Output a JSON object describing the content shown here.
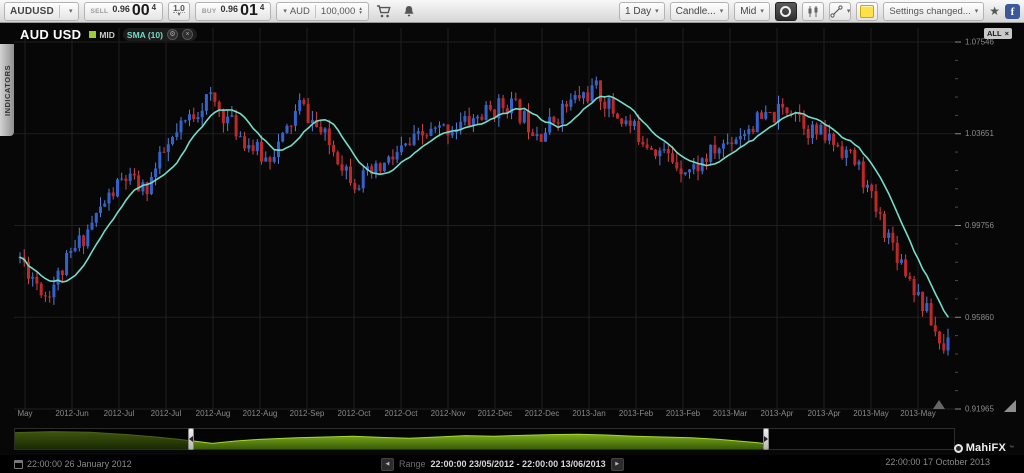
{
  "toolbar": {
    "symbol": "AUDUSD",
    "sell_label": "SELL",
    "sell_price_small": "0.96",
    "sell_price_big": "00",
    "sell_price_sup": "4",
    "spread": "1.0",
    "buy_label": "BUY",
    "buy_price_small": "0.96",
    "buy_price_big": "01",
    "buy_price_sup": "4",
    "currency": "AUD",
    "amount": "100,000",
    "period": "1 Day",
    "chart_style": "Candle...",
    "price_mode": "Mid",
    "notification": "Settings changed..."
  },
  "sidebar": {
    "indicators_tab": "INDICATORS"
  },
  "chart_header": {
    "title": "AUD USD",
    "mid_label": "MID",
    "sma_label": "SMA (10)",
    "all_badge": "ALL",
    "close_glyph": "×",
    "gear_glyph": "⚙"
  },
  "footer": {
    "start_time": "22:00:00 26 January 2012",
    "range_label": "Range",
    "range_value": "22:00:00 23/05/2012 - 22:00:00 13/06/2013",
    "end_time": "22:00:00 17 October 2013",
    "brand": "MahiFX"
  },
  "chart_data": {
    "type": "candlestick",
    "title": "AUD USD",
    "series": [
      {
        "name": "MID",
        "type": "candle"
      },
      {
        "name": "SMA (10)",
        "type": "line",
        "period": 10
      }
    ],
    "x_labels": [
      "May",
      "2012-Jun",
      "2012-Jul",
      "2012-Jul",
      "2012-Aug",
      "2012-Aug",
      "2012-Sep",
      "2012-Oct",
      "2012-Oct",
      "2012-Nov",
      "2012-Dec",
      "2012-Dec",
      "2013-Jan",
      "2013-Feb",
      "2013-Feb",
      "2013-Mar",
      "2013-Apr",
      "2013-Apr",
      "2013-May",
      "2013-May"
    ],
    "y_tick_labels": [
      "1.07546",
      "1.03651",
      "0.99756",
      "0.95860",
      "0.91965"
    ],
    "y_ticks": [
      1.07546,
      1.03651,
      0.99756,
      0.9586,
      0.91965
    ],
    "y_min": 0.91965,
    "y_max": 1.07546,
    "grid": true,
    "price_path": [
      [
        0.0,
        0.984
      ],
      [
        0.028,
        0.968
      ],
      [
        0.046,
        0.979
      ],
      [
        0.07,
        0.994
      ],
      [
        0.091,
        1.007
      ],
      [
        0.113,
        1.018
      ],
      [
        0.134,
        1.012
      ],
      [
        0.155,
        1.028
      ],
      [
        0.182,
        1.043
      ],
      [
        0.203,
        1.052
      ],
      [
        0.219,
        1.045
      ],
      [
        0.24,
        1.035
      ],
      [
        0.264,
        1.0255
      ],
      [
        0.283,
        1.034
      ],
      [
        0.302,
        1.049
      ],
      [
        0.32,
        1.039
      ],
      [
        0.341,
        1.028
      ],
      [
        0.362,
        1.016
      ],
      [
        0.384,
        1.02
      ],
      [
        0.41,
        1.029
      ],
      [
        0.437,
        1.036
      ],
      [
        0.463,
        1.039
      ],
      [
        0.485,
        1.042
      ],
      [
        0.506,
        1.046
      ],
      [
        0.527,
        1.05
      ],
      [
        0.548,
        1.041
      ],
      [
        0.564,
        1.037
      ],
      [
        0.582,
        1.046
      ],
      [
        0.601,
        1.052
      ],
      [
        0.621,
        1.055
      ],
      [
        0.639,
        1.046
      ],
      [
        0.665,
        1.037
      ],
      [
        0.687,
        1.03
      ],
      [
        0.708,
        1.024
      ],
      [
        0.724,
        1.021
      ],
      [
        0.745,
        1.028
      ],
      [
        0.769,
        1.035
      ],
      [
        0.791,
        1.041
      ],
      [
        0.812,
        1.044
      ],
      [
        0.833,
        1.049
      ],
      [
        0.851,
        1.038
      ],
      [
        0.869,
        1.035
      ],
      [
        0.888,
        1.03
      ],
      [
        0.904,
        1.022
      ],
      [
        0.92,
        1.006
      ],
      [
        0.936,
        0.993
      ],
      [
        0.952,
        0.981
      ],
      [
        0.968,
        0.968
      ],
      [
        0.984,
        0.955
      ],
      [
        0.995,
        0.944
      ],
      [
        1.0,
        0.953
      ]
    ],
    "candles_count": 220,
    "body_volatility": 0.0045,
    "wick_extent": 0.004,
    "seed": 11,
    "sma_period": 10,
    "colors": {
      "up": "#3263cd",
      "up_wick": "#5580d8",
      "down": "#c02828",
      "down_wick": "#d24545",
      "sma": "#74dcc8",
      "grid": "#1f1f1f",
      "axis_text": "#8a8a8a",
      "mid_swatch": "#9acd32",
      "nav_fill_top": "#8abd20",
      "nav_fill_bottom": "#395c07",
      "nav_line": "#a6d437"
    },
    "navigator": {
      "path": [
        [
          0.0,
          0.18
        ],
        [
          0.04,
          0.13
        ],
        [
          0.08,
          0.16
        ],
        [
          0.12,
          0.28
        ],
        [
          0.15,
          0.4
        ],
        [
          0.175,
          0.52
        ],
        [
          0.19,
          0.6
        ],
        [
          0.21,
          0.72
        ],
        [
          0.235,
          0.6
        ],
        [
          0.26,
          0.52
        ],
        [
          0.3,
          0.44
        ],
        [
          0.33,
          0.4
        ],
        [
          0.36,
          0.36
        ],
        [
          0.39,
          0.42
        ],
        [
          0.42,
          0.46
        ],
        [
          0.45,
          0.4
        ],
        [
          0.48,
          0.33
        ],
        [
          0.51,
          0.36
        ],
        [
          0.54,
          0.32
        ],
        [
          0.57,
          0.28
        ],
        [
          0.6,
          0.26
        ],
        [
          0.63,
          0.3
        ],
        [
          0.66,
          0.36
        ],
        [
          0.69,
          0.4
        ],
        [
          0.72,
          0.44
        ],
        [
          0.75,
          0.52
        ],
        [
          0.77,
          0.6
        ],
        [
          0.79,
          0.68
        ],
        [
          0.801,
          0.74
        ]
      ],
      "handles": [
        0.189,
        0.801
      ]
    }
  }
}
